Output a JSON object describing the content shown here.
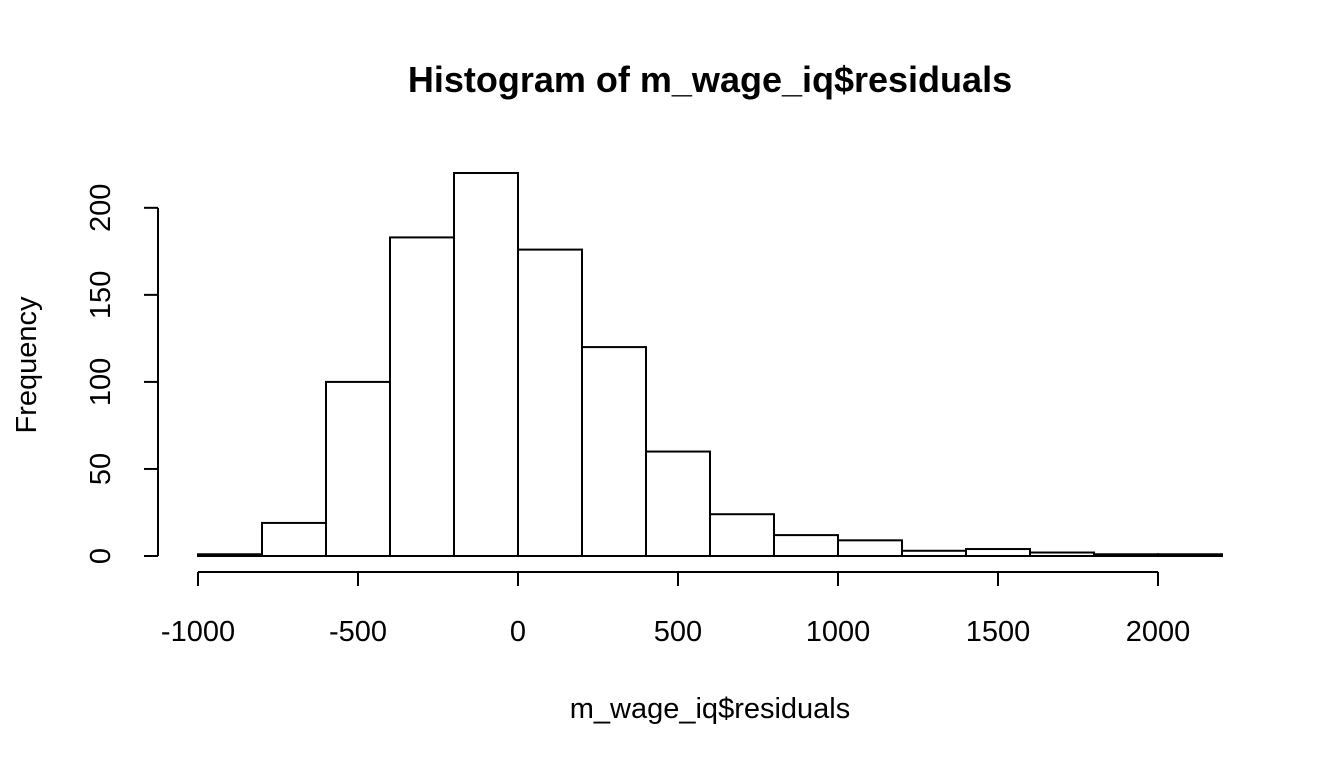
{
  "chart_data": {
    "type": "bar",
    "title": "Histogram of m_wage_iq$residuals",
    "xlabel": "m_wage_iq$residuals",
    "ylabel": "Frequency",
    "bins": [
      {
        "x0": -1000,
        "x1": -800,
        "count": 1
      },
      {
        "x0": -800,
        "x1": -600,
        "count": 19
      },
      {
        "x0": -600,
        "x1": -400,
        "count": 100
      },
      {
        "x0": -400,
        "x1": -200,
        "count": 183
      },
      {
        "x0": -200,
        "x1": 0,
        "count": 220
      },
      {
        "x0": 0,
        "x1": 200,
        "count": 176
      },
      {
        "x0": 200,
        "x1": 400,
        "count": 120
      },
      {
        "x0": 400,
        "x1": 600,
        "count": 60
      },
      {
        "x0": 600,
        "x1": 800,
        "count": 24
      },
      {
        "x0": 800,
        "x1": 1000,
        "count": 12
      },
      {
        "x0": 1000,
        "x1": 1200,
        "count": 9
      },
      {
        "x0": 1200,
        "x1": 1400,
        "count": 3
      },
      {
        "x0": 1400,
        "x1": 1600,
        "count": 4
      },
      {
        "x0": 1600,
        "x1": 1800,
        "count": 2
      },
      {
        "x0": 1800,
        "x1": 2000,
        "count": 1
      },
      {
        "x0": 2000,
        "x1": 2200,
        "count": 1
      }
    ],
    "xticks": [
      -1000,
      -500,
      0,
      500,
      1000,
      1500,
      2000
    ],
    "yticks": [
      0,
      50,
      100,
      150,
      200
    ],
    "xlim": [
      -1000,
      2200
    ],
    "ylim": [
      0,
      220
    ],
    "grid": false
  }
}
